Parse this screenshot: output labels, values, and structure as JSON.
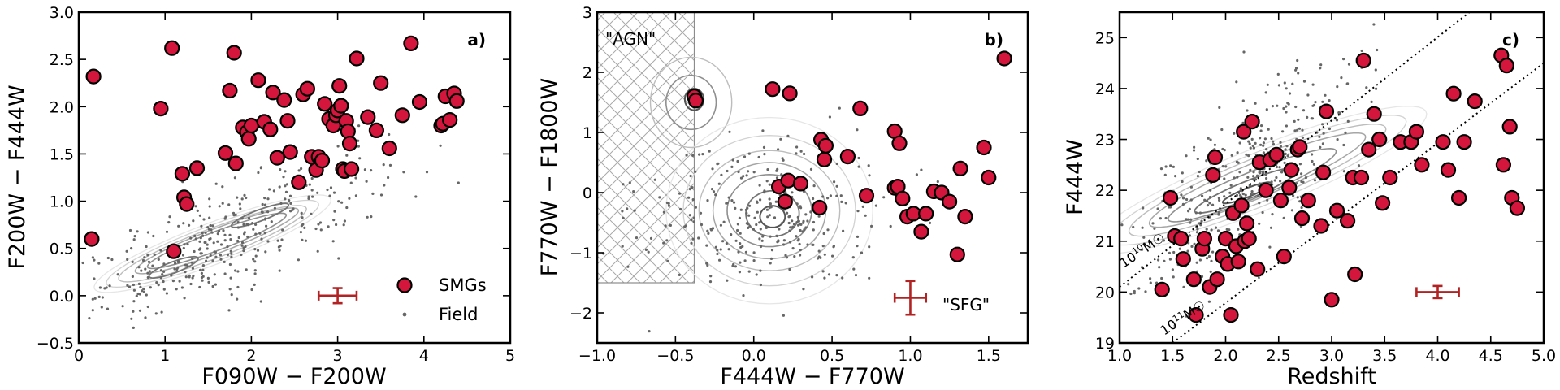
{
  "colors": {
    "smg": "#d4153c",
    "field": "#6b6b6b",
    "errorbar": "#b22222",
    "contour": "#7a7a7a"
  },
  "chart_data": [
    {
      "type": "scatter",
      "panel": "a)",
      "xlabel": "F090W − F200W",
      "ylabel": "F200W − F444W",
      "xlim": [
        0,
        5
      ],
      "ylim": [
        -0.5,
        3.0
      ],
      "xticks": [
        0,
        1,
        2,
        3,
        4,
        5
      ],
      "xtick_labels": [
        "0",
        "1",
        "2",
        "3",
        "4",
        "5"
      ],
      "yticks": [
        -0.5,
        0.0,
        0.5,
        1.0,
        1.5,
        2.0,
        2.5,
        3.0
      ],
      "ytick_labels": [
        "−0.5",
        "0.0",
        "0.5",
        "1.0",
        "1.5",
        "2.0",
        "2.5",
        "3.0"
      ],
      "legend": [
        {
          "label": "SMGs",
          "marker": "red-circle"
        },
        {
          "label": "Field",
          "marker": "gray-dot"
        }
      ],
      "errorbar": {
        "x": 3.0,
        "y": 0.0,
        "xerr": 0.22,
        "yerr": 0.08
      },
      "field_density": {
        "center": [
          1.7,
          0.6
        ],
        "spread": [
          0.9,
          0.45
        ],
        "rho": 0.8,
        "count": 380
      },
      "contours": [
        {
          "center": [
            1.55,
            0.55
          ],
          "rx": 1.45,
          "ry": 0.22,
          "angle_deg": 19,
          "level": 1
        },
        {
          "center": [
            1.55,
            0.55
          ],
          "rx": 1.3,
          "ry": 0.19,
          "angle_deg": 19,
          "level": 2
        },
        {
          "center": [
            1.55,
            0.55
          ],
          "rx": 1.15,
          "ry": 0.16,
          "angle_deg": 19,
          "level": 3
        },
        {
          "center": [
            1.6,
            0.58
          ],
          "rx": 1.0,
          "ry": 0.13,
          "angle_deg": 19,
          "level": 4
        },
        {
          "center": [
            1.6,
            0.58
          ],
          "rx": 0.85,
          "ry": 0.1,
          "angle_deg": 19,
          "level": 5
        },
        {
          "center": [
            2.1,
            0.85
          ],
          "rx": 0.35,
          "ry": 0.06,
          "angle_deg": 19,
          "level": 6
        },
        {
          "center": [
            1.1,
            0.3
          ],
          "rx": 0.3,
          "ry": 0.06,
          "angle_deg": 19,
          "level": 6
        }
      ],
      "series": [
        {
          "name": "SMGs",
          "x": [
            0.15,
            0.17,
            0.95,
            1.1,
            1.08,
            1.22,
            1.25,
            1.2,
            1.37,
            1.7,
            1.75,
            1.8,
            1.82,
            1.9,
            1.95,
            1.97,
            2.0,
            2.08,
            2.15,
            2.22,
            2.25,
            2.3,
            2.38,
            2.42,
            2.45,
            2.55,
            2.6,
            2.65,
            2.7,
            2.75,
            2.78,
            2.82,
            2.85,
            2.9,
            2.95,
            2.98,
            3.0,
            3.02,
            3.04,
            3.06,
            3.08,
            3.1,
            3.12,
            3.14,
            3.16,
            3.22,
            3.35,
            3.45,
            3.5,
            3.6,
            3.75,
            3.85,
            3.95,
            4.2,
            4.22,
            4.25,
            4.3,
            4.35,
            4.38
          ],
          "y": [
            0.6,
            2.32,
            1.98,
            0.47,
            2.62,
            1.04,
            0.97,
            1.29,
            1.35,
            1.51,
            2.17,
            2.57,
            1.4,
            1.78,
            1.73,
            1.66,
            1.8,
            2.28,
            1.84,
            1.76,
            2.15,
            1.46,
            2.07,
            1.85,
            1.52,
            1.2,
            2.13,
            2.19,
            1.47,
            1.33,
            1.47,
            1.43,
            2.03,
            1.87,
            1.8,
            1.91,
            1.96,
            2.22,
            2.01,
            1.34,
            1.32,
            1.85,
            1.74,
            1.61,
            1.34,
            2.51,
            1.89,
            1.75,
            2.25,
            1.56,
            1.91,
            2.67,
            2.05,
            1.8,
            1.82,
            2.11,
            1.86,
            2.14,
            2.06
          ]
        }
      ]
    },
    {
      "type": "scatter",
      "panel": "b)",
      "xlabel": "F444W − F770W",
      "ylabel": "F770W − F1800W",
      "xlim": [
        -1.0,
        1.75
      ],
      "ylim": [
        -2.5,
        3.0
      ],
      "xticks": [
        -1.0,
        -0.5,
        0.0,
        0.5,
        1.0,
        1.5
      ],
      "xtick_labels": [
        "−1.0",
        "−0.5",
        "0.0",
        "0.5",
        "1.0",
        "1.5"
      ],
      "yticks": [
        -2,
        -1,
        0,
        1,
        2,
        3
      ],
      "ytick_labels": [
        "−2",
        "−1",
        "0",
        "1",
        "2",
        "3"
      ],
      "annotations": [
        "\"AGN\"",
        "\"SFG\""
      ],
      "agn_region": {
        "x": [
          -1.0,
          -0.38
        ],
        "y_low": -1.5,
        "y_high": 3.0
      },
      "errorbar": {
        "x": 1.0,
        "y": -1.75,
        "xerr": 0.1,
        "yerr": 0.28
      },
      "field_density": {
        "center": [
          0.05,
          -0.35
        ],
        "spread": [
          0.4,
          0.65
        ],
        "rho": 0.0,
        "count": 330
      },
      "contours": [
        {
          "center": [
            0.1,
            -0.3
          ],
          "rx": 0.66,
          "ry": 1.55,
          "angle_deg": 0,
          "level": 1
        },
        {
          "center": [
            0.1,
            -0.3
          ],
          "rx": 0.55,
          "ry": 1.25,
          "angle_deg": 0,
          "level": 2
        },
        {
          "center": [
            0.1,
            -0.3
          ],
          "rx": 0.45,
          "ry": 1.0,
          "angle_deg": 0,
          "level": 3
        },
        {
          "center": [
            0.1,
            -0.3
          ],
          "rx": 0.36,
          "ry": 0.8,
          "angle_deg": 0,
          "level": 4
        },
        {
          "center": [
            0.1,
            -0.3
          ],
          "rx": 0.27,
          "ry": 0.6,
          "angle_deg": 0,
          "level": 5
        },
        {
          "center": [
            0.12,
            -0.35
          ],
          "rx": 0.17,
          "ry": 0.38,
          "angle_deg": 0,
          "level": 6
        },
        {
          "center": [
            0.12,
            -0.4
          ],
          "rx": 0.08,
          "ry": 0.18,
          "angle_deg": 0,
          "level": 7
        },
        {
          "center": [
            -0.4,
            1.5
          ],
          "rx": 0.26,
          "ry": 0.75,
          "angle_deg": 0,
          "level": 3
        },
        {
          "center": [
            -0.4,
            1.5
          ],
          "rx": 0.16,
          "ry": 0.45,
          "angle_deg": 0,
          "level": 5
        },
        {
          "center": [
            -0.38,
            1.55
          ],
          "rx": 0.06,
          "ry": 0.18,
          "angle_deg": 0,
          "level": 7
        }
      ],
      "series": [
        {
          "name": "SMGs",
          "x": [
            -0.38,
            -0.37,
            0.12,
            0.16,
            0.2,
            0.22,
            0.23,
            0.3,
            0.42,
            0.43,
            0.45,
            0.46,
            0.6,
            0.68,
            0.72,
            0.9,
            0.9,
            0.92,
            0.93,
            0.95,
            0.98,
            1.02,
            1.07,
            1.1,
            1.15,
            1.2,
            1.25,
            1.3,
            1.32,
            1.35,
            1.47,
            1.5,
            1.6
          ],
          "y": [
            1.6,
            1.53,
            1.72,
            0.1,
            -0.15,
            0.2,
            1.65,
            0.15,
            -0.25,
            0.88,
            0.55,
            0.78,
            0.6,
            1.4,
            -0.05,
            1.02,
            0.08,
            0.1,
            0.82,
            -0.1,
            -0.4,
            -0.35,
            -0.65,
            -0.35,
            0.02,
            0.0,
            -0.15,
            -1.03,
            0.4,
            -0.4,
            0.75,
            0.25,
            2.23
          ]
        }
      ]
    },
    {
      "type": "scatter",
      "panel": "c)",
      "xlabel": "Redshift",
      "ylabel": "F444W",
      "xlim": [
        1.0,
        5.0
      ],
      "ylim": [
        19.0,
        25.5
      ],
      "xticks": [
        1.0,
        1.5,
        2.0,
        2.5,
        3.0,
        3.5,
        4.0,
        4.5,
        5.0
      ],
      "xtick_labels": [
        "1.0",
        "1.5",
        "2.0",
        "2.5",
        "3.0",
        "3.5",
        "4.0",
        "4.5",
        "5.0"
      ],
      "yticks": [
        19,
        20,
        21,
        22,
        23,
        24,
        25
      ],
      "ytick_labels": [
        "19",
        "20",
        "21",
        "22",
        "23",
        "24",
        "25"
      ],
      "reference_lines": [
        {
          "label": "10^10 M☉",
          "label_main": "10",
          "label_exp": "10",
          "label_unit": "M☉",
          "x": [
            1.0,
            4.3
          ],
          "y": [
            20.1,
            25.5
          ]
        },
        {
          "label": "10^11 M☉",
          "label_main": "10",
          "label_exp": "11",
          "label_unit": "M☉",
          "x": [
            1.5,
            5.0
          ],
          "y": [
            19.0,
            24.5
          ]
        }
      ],
      "errorbar": {
        "x": 4.0,
        "y": 20.0,
        "xerr": 0.2,
        "yerr": 0.12
      },
      "field_density": {
        "center": [
          2.2,
          22.2
        ],
        "spread": [
          0.55,
          1.2
        ],
        "rho": 0.75,
        "count": 420
      },
      "contours": [
        {
          "center": [
            2.3,
            22.2
          ],
          "rx": 2.1,
          "ry": 0.5,
          "angle_deg": 42,
          "level": 1
        },
        {
          "center": [
            2.3,
            22.2
          ],
          "rx": 1.85,
          "ry": 0.42,
          "angle_deg": 42,
          "level": 2
        },
        {
          "center": [
            2.3,
            22.2
          ],
          "rx": 1.6,
          "ry": 0.35,
          "angle_deg": 42,
          "level": 3
        },
        {
          "center": [
            2.3,
            22.2
          ],
          "rx": 1.35,
          "ry": 0.28,
          "angle_deg": 42,
          "level": 4
        },
        {
          "center": [
            2.25,
            22.1
          ],
          "rx": 1.05,
          "ry": 0.21,
          "angle_deg": 42,
          "level": 5
        },
        {
          "center": [
            2.2,
            22.0
          ],
          "rx": 0.65,
          "ry": 0.14,
          "angle_deg": 42,
          "level": 6
        },
        {
          "center": [
            2.2,
            21.95
          ],
          "rx": 0.3,
          "ry": 0.07,
          "angle_deg": 42,
          "level": 7
        }
      ],
      "series": [
        {
          "name": "SMGs",
          "x": [
            1.4,
            1.48,
            1.52,
            1.58,
            1.6,
            1.7,
            1.72,
            1.78,
            1.8,
            1.85,
            1.88,
            1.9,
            1.92,
            1.97,
            2.0,
            2.02,
            2.05,
            2.07,
            2.1,
            2.12,
            2.15,
            2.17,
            2.18,
            2.2,
            2.22,
            2.25,
            2.3,
            2.32,
            2.38,
            2.42,
            2.48,
            2.52,
            2.55,
            2.6,
            2.62,
            2.68,
            2.7,
            2.72,
            2.78,
            2.9,
            2.92,
            2.95,
            3.0,
            3.05,
            3.15,
            3.2,
            3.22,
            3.28,
            3.3,
            3.35,
            3.4,
            3.45,
            3.48,
            3.55,
            3.65,
            3.75,
            3.8,
            3.85,
            4.05,
            4.1,
            4.15,
            4.2,
            4.25,
            4.35,
            4.6,
            4.62,
            4.65,
            4.68,
            4.7,
            4.75
          ],
          "y": [
            20.05,
            21.85,
            21.1,
            21.05,
            20.65,
            20.25,
            19.55,
            20.85,
            21.05,
            20.1,
            22.3,
            22.65,
            20.25,
            20.7,
            21.05,
            20.55,
            19.55,
            21.55,
            20.9,
            20.6,
            21.7,
            23.15,
            21.0,
            21.35,
            21.05,
            23.35,
            20.45,
            22.55,
            22.0,
            22.6,
            22.7,
            21.8,
            20.7,
            22.05,
            22.4,
            22.8,
            22.85,
            21.45,
            21.8,
            21.3,
            22.35,
            23.55,
            19.85,
            21.6,
            21.4,
            22.25,
            20.35,
            22.25,
            24.55,
            22.8,
            23.5,
            23.0,
            21.75,
            22.25,
            22.95,
            22.95,
            23.15,
            22.5,
            22.95,
            22.4,
            23.9,
            21.85,
            22.95,
            23.75,
            24.65,
            22.5,
            24.45,
            23.25,
            21.85,
            21.65
          ]
        }
      ]
    }
  ]
}
